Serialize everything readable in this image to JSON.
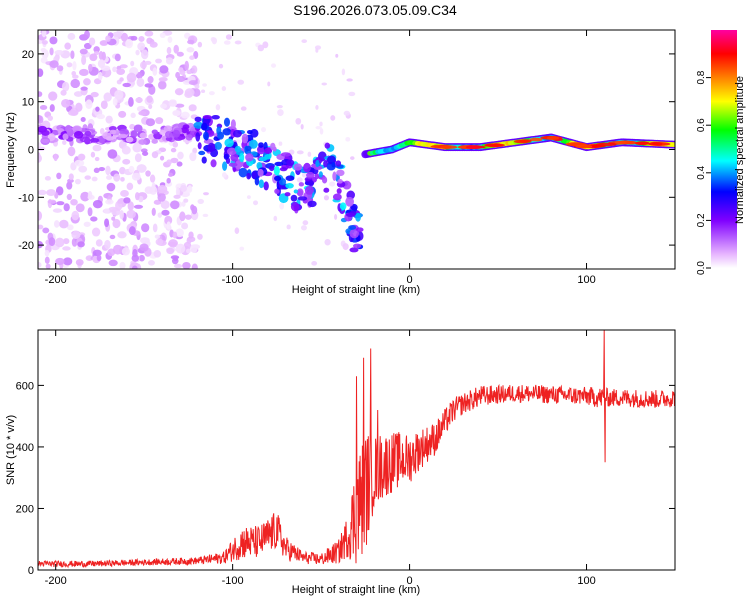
{
  "header": {
    "title": "S196.2026.073.05.09.C34"
  },
  "chart_data": [
    {
      "type": "heatmap",
      "title": "S196.2026.073.05.09.C34",
      "xlabel": "Height of straight line (km)",
      "ylabel": "Frequency (Hz)",
      "xlim": [
        -210,
        150
      ],
      "ylim": [
        -25,
        25
      ],
      "x_ticks": [
        -200,
        -100,
        0,
        100
      ],
      "x_tick_labels": [
        "-200",
        "-100",
        "0",
        "100"
      ],
      "y_ticks": [
        -20,
        -10,
        0,
        10,
        20
      ],
      "y_tick_labels": [
        "-20",
        "-10",
        "0",
        "10",
        "20"
      ],
      "grid": false,
      "colorbar": {
        "label": "Normalized spectral amplitude",
        "range": [
          0.0,
          1.0
        ],
        "ticks": [
          0.0,
          0.2,
          0.4,
          0.6,
          0.8
        ],
        "tick_labels": [
          "0.0",
          "0.2",
          "0.4",
          "0.6",
          "0.8"
        ],
        "colormap": [
          "#ffffff",
          "#e6b3ff",
          "#8000ff",
          "#0000ff",
          "#00ffff",
          "#00ff00",
          "#ffff00",
          "#ff8000",
          "#ff0000",
          "#ff00a0"
        ]
      },
      "description_series": [
        {
          "name": "scattered noise",
          "x_range": [
            -210,
            -120
          ],
          "y_range": [
            -25,
            25
          ],
          "amplitude": 0.05
        },
        {
          "name": "band before",
          "x": [
            -210,
            -150,
            -120
          ],
          "y": [
            3,
            3,
            4
          ],
          "amplitude": 0.1
        },
        {
          "name": "falling trail",
          "x": [
            -120,
            -100,
            -80,
            -60,
            -45,
            -35,
            -30
          ],
          "y": [
            3,
            1,
            -3,
            -9,
            -3,
            -12,
            -18
          ],
          "amplitude": 0.2
        },
        {
          "name": "steady tone",
          "x": [
            -25,
            -10,
            0,
            20,
            40,
            60,
            80,
            100,
            120,
            150
          ],
          "y": [
            -1,
            0,
            1.5,
            0.5,
            0.5,
            1.5,
            2.5,
            0.5,
            1.5,
            1
          ],
          "amplitude": 0.9
        }
      ]
    },
    {
      "type": "line",
      "title": "",
      "xlabel": "Height of straight line (km)",
      "ylabel": "SNR (10 * v/v)",
      "xlim": [
        -210,
        150
      ],
      "ylim": [
        0,
        780
      ],
      "x_ticks": [
        -200,
        -100,
        0,
        100
      ],
      "x_tick_labels": [
        "-200",
        "-100",
        "0",
        "100"
      ],
      "y_ticks": [
        0,
        200,
        400,
        600
      ],
      "y_tick_labels": [
        "0",
        "200",
        "400",
        "600"
      ],
      "grid": false,
      "series": [
        {
          "name": "SNR",
          "color": "#ee2222",
          "x": [
            -210,
            -180,
            -150,
            -120,
            -105,
            -95,
            -85,
            -75,
            -70,
            -60,
            -50,
            -40,
            -35,
            -30,
            -25,
            -20,
            -15,
            -10,
            -5,
            0,
            5,
            10,
            15,
            20,
            25,
            30,
            40,
            50,
            60,
            80,
            100,
            108,
            110,
            112,
            120,
            140,
            150
          ],
          "y": [
            20,
            20,
            25,
            30,
            40,
            90,
            90,
            130,
            70,
            40,
            35,
            60,
            110,
            190,
            260,
            320,
            340,
            350,
            360,
            360,
            390,
            410,
            430,
            480,
            520,
            540,
            565,
            570,
            575,
            570,
            565,
            560,
            560,
            560,
            560,
            555,
            560
          ],
          "amplitude": [
            10,
            10,
            10,
            12,
            20,
            55,
            55,
            65,
            40,
            20,
            20,
            40,
            70,
            180,
            200,
            120,
            110,
            100,
            90,
            80,
            70,
            60,
            55,
            45,
            40,
            35,
            35,
            30,
            30,
            30,
            30,
            35,
            35,
            30,
            30,
            30,
            30
          ],
          "spikes": [
            {
              "x": -30,
              "y": 630
            },
            {
              "x": -26,
              "y": 690
            },
            {
              "x": -22,
              "y": 720
            },
            {
              "x": -18,
              "y": 520
            },
            {
              "x": 110,
              "y": 780
            },
            {
              "x": 110.5,
              "y": 350
            }
          ]
        }
      ]
    }
  ]
}
